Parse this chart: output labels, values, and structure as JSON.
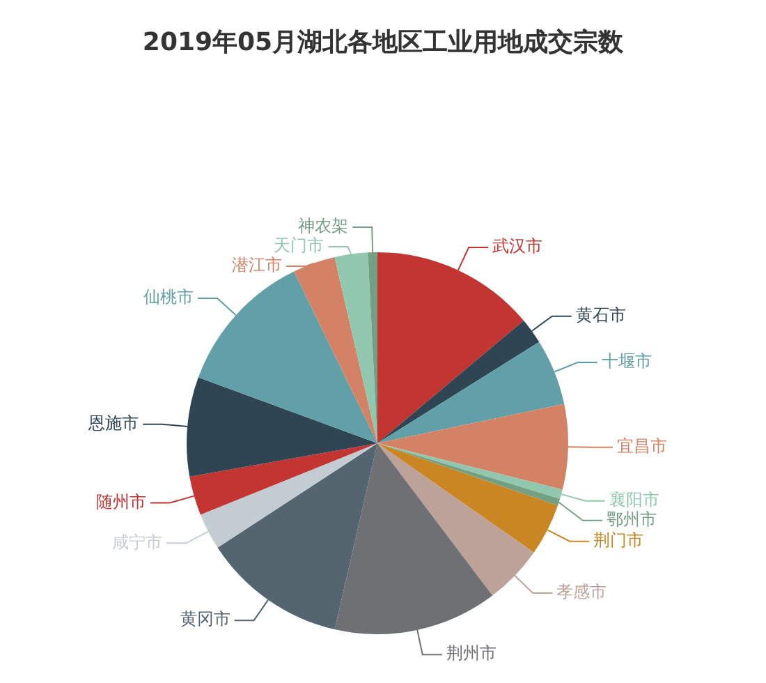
{
  "chart_data": {
    "type": "pie",
    "title": "2019年05月湖北各地区工业用地成交宗数",
    "categories": [
      "武汉市",
      "黄石市",
      "十堰市",
      "宜昌市",
      "襄阳市",
      "鄂州市",
      "荆门市",
      "孝感市",
      "荆州市",
      "黄冈市",
      "咸宁市",
      "随州市",
      "恩施市",
      "仙桃市",
      "潜江市",
      "天门市",
      "神农架"
    ],
    "values": [
      13.9,
      2.2,
      5.6,
      7.2,
      0.8,
      0.6,
      4.4,
      5.0,
      13.9,
      12.2,
      3.1,
      3.3,
      8.4,
      12.2,
      3.6,
      2.8,
      0.8
    ],
    "colors": [
      "#c23531",
      "#2f4554",
      "#61a0a8",
      "#d48265",
      "#91c7ae",
      "#749f83",
      "#ca8622",
      "#bda29a",
      "#6e7074",
      "#546570",
      "#c4ccd3",
      "#c23531",
      "#2f4554",
      "#61a0a8",
      "#d48265",
      "#91c7ae",
      "#749f83"
    ],
    "legend": false
  }
}
